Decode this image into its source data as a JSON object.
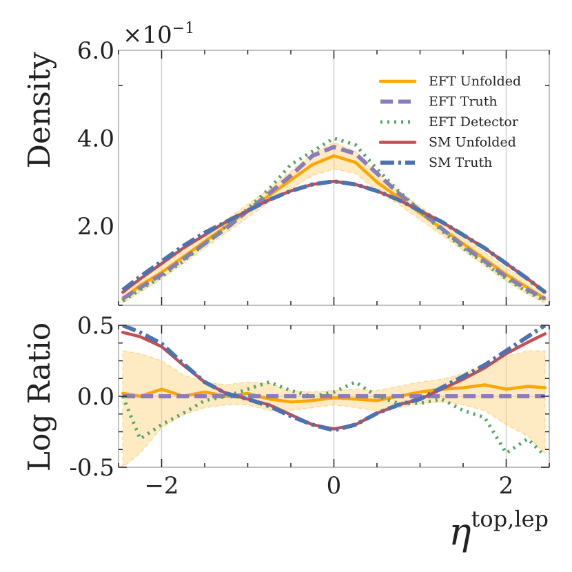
{
  "chart_data": [
    {
      "panel": "main",
      "type": "line",
      "ylabel": "Density",
      "offset_text": "×10⁻¹",
      "offset_base": "×10",
      "offset_exp": "−1",
      "xlim": [
        -2.5,
        2.5
      ],
      "ylim": [
        0.02,
        0.6
      ],
      "yticks": [
        2.0,
        4.0,
        6.0
      ],
      "ytick_labels": [
        "2.0",
        "4.0",
        "6.0"
      ],
      "xticks": [
        -2,
        0,
        2
      ],
      "grid": true,
      "legend_position": "top-right",
      "x": [
        -2.45,
        -2.25,
        -2.0,
        -1.75,
        -1.5,
        -1.25,
        -1.0,
        -0.75,
        -0.5,
        -0.25,
        0.0,
        0.25,
        0.5,
        0.75,
        1.0,
        1.25,
        1.5,
        1.75,
        2.0,
        2.25,
        2.45
      ],
      "series": [
        {
          "name": "EFT Unfolded",
          "color": "#ffa500",
          "style": "solid",
          "values": [
            0.035,
            0.065,
            0.095,
            0.13,
            0.165,
            0.2,
            0.235,
            0.27,
            0.305,
            0.34,
            0.36,
            0.345,
            0.3,
            0.265,
            0.23,
            0.195,
            0.16,
            0.125,
            0.09,
            0.06,
            0.035
          ]
        },
        {
          "name": "EFT Truth",
          "color": "#8c7bbd",
          "style": "dashed",
          "values": [
            0.035,
            0.06,
            0.09,
            0.125,
            0.16,
            0.195,
            0.235,
            0.275,
            0.315,
            0.36,
            0.38,
            0.365,
            0.32,
            0.275,
            0.235,
            0.195,
            0.155,
            0.12,
            0.085,
            0.055,
            0.035
          ]
        },
        {
          "name": "EFT Detector",
          "color": "#5aa469",
          "style": "dotted",
          "values": [
            0.03,
            0.055,
            0.085,
            0.12,
            0.16,
            0.2,
            0.24,
            0.285,
            0.34,
            0.37,
            0.4,
            0.385,
            0.33,
            0.28,
            0.235,
            0.19,
            0.15,
            0.115,
            0.08,
            0.05,
            0.03
          ]
        },
        {
          "name": "SM Unfolded",
          "color": "#c44e52",
          "style": "solid",
          "values": [
            0.05,
            0.08,
            0.115,
            0.15,
            0.18,
            0.21,
            0.235,
            0.26,
            0.28,
            0.295,
            0.302,
            0.295,
            0.28,
            0.26,
            0.235,
            0.21,
            0.18,
            0.15,
            0.115,
            0.08,
            0.05
          ]
        },
        {
          "name": "SM Truth",
          "color": "#4c72b0",
          "style": "dashdot",
          "values": [
            0.055,
            0.085,
            0.12,
            0.155,
            0.185,
            0.21,
            0.235,
            0.26,
            0.28,
            0.295,
            0.302,
            0.295,
            0.28,
            0.26,
            0.235,
            0.21,
            0.18,
            0.15,
            0.115,
            0.08,
            0.05
          ]
        }
      ],
      "band": {
        "series": "EFT Unfolded",
        "color": "#ffd27a",
        "lower": [
          0.025,
          0.05,
          0.08,
          0.115,
          0.15,
          0.185,
          0.22,
          0.255,
          0.285,
          0.315,
          0.33,
          0.32,
          0.28,
          0.25,
          0.215,
          0.18,
          0.145,
          0.11,
          0.075,
          0.045,
          0.025
        ],
        "upper": [
          0.045,
          0.08,
          0.11,
          0.145,
          0.18,
          0.215,
          0.25,
          0.285,
          0.325,
          0.365,
          0.39,
          0.37,
          0.32,
          0.28,
          0.245,
          0.21,
          0.175,
          0.14,
          0.105,
          0.075,
          0.045
        ]
      }
    },
    {
      "panel": "ratio",
      "type": "line",
      "ylabel": "Log Ratio",
      "xlabel_base": "η",
      "xlabel_sup": "top,lep",
      "xlim": [
        -2.5,
        2.5
      ],
      "ylim": [
        -0.5,
        0.5
      ],
      "yticks": [
        -0.5,
        0.0,
        0.5
      ],
      "ytick_labels": [
        "-0.5",
        "0.0",
        "0.5"
      ],
      "xticks": [
        -2,
        0,
        2
      ],
      "xtick_labels": [
        "−2",
        "0",
        "2"
      ],
      "grid": true,
      "x": [
        -2.45,
        -2.25,
        -2.0,
        -1.75,
        -1.5,
        -1.25,
        -1.0,
        -0.75,
        -0.5,
        -0.25,
        0.0,
        0.25,
        0.5,
        0.75,
        1.0,
        1.25,
        1.5,
        1.75,
        2.0,
        2.25,
        2.45
      ],
      "series": [
        {
          "name": "EFT Unfolded",
          "color": "#ffa500",
          "style": "solid",
          "values": [
            0.02,
            0.0,
            0.05,
            0.0,
            0.03,
            0.0,
            0.02,
            -0.02,
            -0.04,
            -0.03,
            -0.01,
            -0.02,
            -0.03,
            0.0,
            0.03,
            0.05,
            0.06,
            0.08,
            0.05,
            0.07,
            0.06
          ]
        },
        {
          "name": "EFT Truth",
          "color": "#8c7bbd",
          "style": "dashed",
          "values": [
            0.0,
            0.0,
            0.0,
            0.0,
            0.0,
            0.0,
            0.0,
            0.0,
            0.0,
            0.0,
            0.0,
            0.0,
            0.0,
            0.0,
            0.0,
            0.0,
            0.0,
            0.0,
            0.0,
            0.0,
            0.0
          ]
        },
        {
          "name": "EFT Detector",
          "color": "#5aa469",
          "style": "dotted",
          "values": [
            0.0,
            -0.3,
            -0.2,
            -0.12,
            -0.03,
            0.0,
            0.05,
            0.1,
            0.04,
            0.0,
            0.03,
            0.1,
            0.0,
            -0.05,
            -0.05,
            -0.02,
            -0.1,
            -0.15,
            -0.4,
            -0.3,
            -0.42
          ]
        },
        {
          "name": "SM Unfolded",
          "color": "#c44e52",
          "style": "solid",
          "values": [
            0.45,
            0.42,
            0.35,
            0.22,
            0.1,
            0.02,
            -0.02,
            -0.06,
            -0.13,
            -0.2,
            -0.23,
            -0.2,
            -0.12,
            -0.06,
            -0.02,
            0.05,
            0.12,
            0.2,
            0.3,
            0.38,
            0.44
          ]
        },
        {
          "name": "SM Truth",
          "color": "#4c72b0",
          "style": "dashdot",
          "values": [
            0.5,
            0.45,
            0.37,
            0.23,
            0.1,
            0.02,
            -0.02,
            -0.07,
            -0.14,
            -0.2,
            -0.24,
            -0.2,
            -0.12,
            -0.06,
            -0.02,
            0.06,
            0.14,
            0.22,
            0.32,
            0.42,
            0.5
          ]
        }
      ],
      "band": {
        "series": "EFT Unfolded",
        "color": "#ffd27a",
        "lower": [
          -0.5,
          -0.4,
          -0.22,
          -0.13,
          -0.08,
          -0.06,
          -0.06,
          -0.1,
          -0.1,
          -0.08,
          -0.06,
          -0.08,
          -0.1,
          -0.08,
          -0.05,
          -0.04,
          -0.06,
          -0.1,
          -0.2,
          -0.28,
          -0.4
        ],
        "upper": [
          0.32,
          0.3,
          0.25,
          0.15,
          0.1,
          0.08,
          0.1,
          0.09,
          0.04,
          0.03,
          0.04,
          0.05,
          0.04,
          0.07,
          0.1,
          0.12,
          0.16,
          0.22,
          0.28,
          0.32,
          0.32
        ]
      }
    }
  ]
}
